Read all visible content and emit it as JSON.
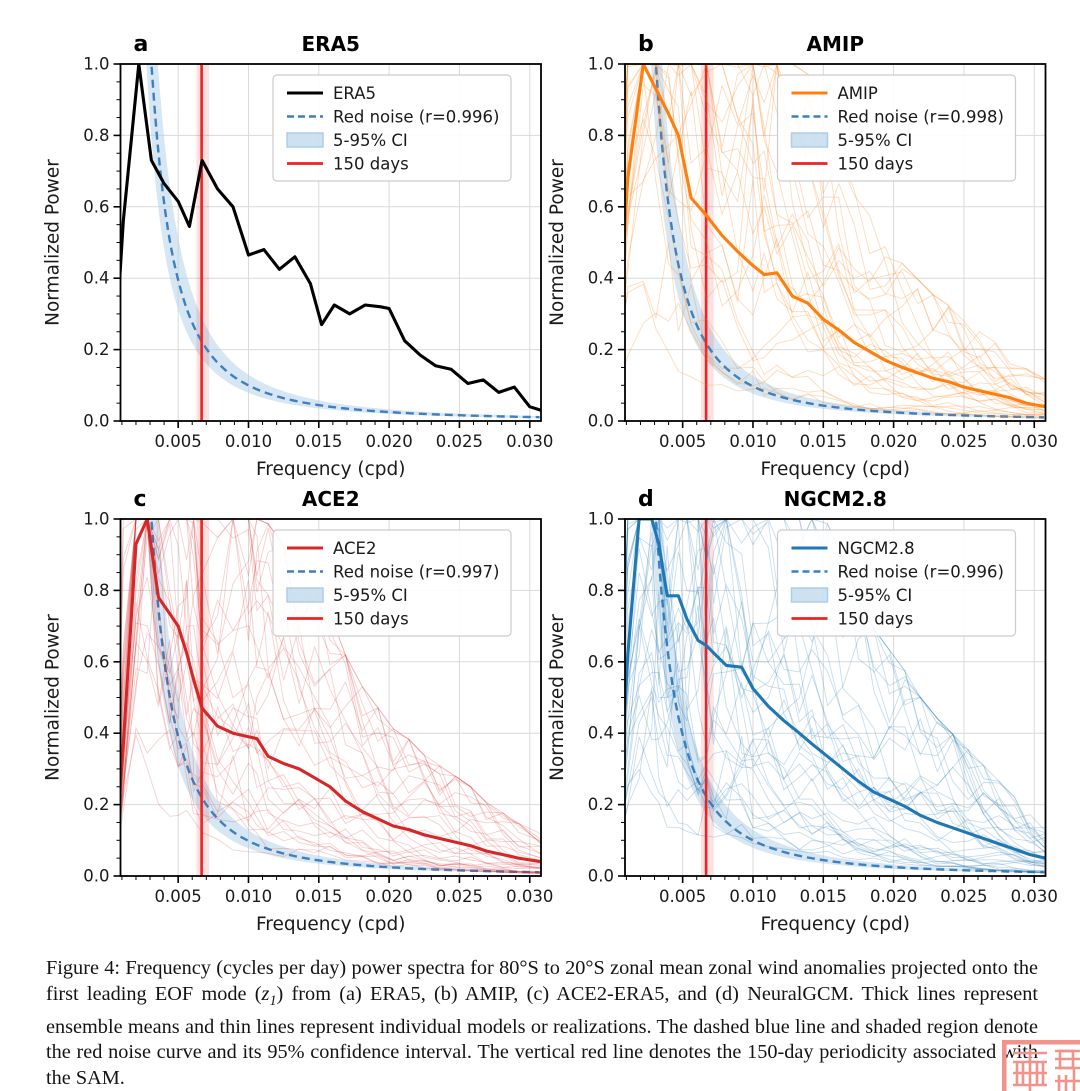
{
  "chart_data": {
    "type": "line",
    "figure_label": "Figure 4",
    "xlabel": "Frequency (cpd)",
    "ylabel": "Normalized Power",
    "xlim": [
      0.0009,
      0.0308
    ],
    "ylim": [
      0.0,
      1.0
    ],
    "xticks": [
      0.005,
      0.01,
      0.015,
      0.02,
      0.025,
      0.03
    ],
    "xtick_labels": [
      "0.005",
      "0.010",
      "0.015",
      "0.020",
      "0.025",
      "0.030"
    ],
    "yticks": [
      0.0,
      0.2,
      0.4,
      0.6,
      0.8,
      1.0
    ],
    "ytick_labels": [
      "0.0",
      "0.2",
      "0.4",
      "0.6",
      "0.8",
      "1.0"
    ],
    "grid": true,
    "legend_position": "upper right",
    "line150_x": 0.006667,
    "line150_band": [
      0.0063,
      0.0072
    ],
    "ci_label": "5-95% CI",
    "line150_label": "150 days",
    "colors": {
      "era5": "#000000",
      "amip": "#ff7f0e",
      "ace2": "#d62728",
      "ngcm": "#1f77b4",
      "red_noise": "#3d7fbf",
      "ci_fill": "#aecde6",
      "line150": "#ee2222",
      "grid": "#d9d9d9"
    },
    "panels": [
      {
        "letter": "a",
        "title": "ERA5",
        "series_name": "ERA5",
        "color_key": "era5",
        "r": 0.996,
        "legend": [
          "ERA5",
          "Red noise (r=0.996)",
          "5-95% CI",
          "150 days"
        ],
        "n_members": 0,
        "member_alpha": 0,
        "seed": 11,
        "mean": [
          [
            0.0005,
            0.18
          ],
          [
            0.0011,
            0.56
          ],
          [
            0.0022,
            1.0
          ],
          [
            0.0031,
            0.73
          ],
          [
            0.004,
            0.665
          ],
          [
            0.005,
            0.615
          ],
          [
            0.0058,
            0.545
          ],
          [
            0.0067,
            0.73
          ],
          [
            0.0078,
            0.65
          ],
          [
            0.0089,
            0.6
          ],
          [
            0.01,
            0.465
          ],
          [
            0.0111,
            0.48
          ],
          [
            0.0122,
            0.425
          ],
          [
            0.0133,
            0.46
          ],
          [
            0.0144,
            0.385
          ],
          [
            0.0152,
            0.27
          ],
          [
            0.0161,
            0.325
          ],
          [
            0.0172,
            0.3
          ],
          [
            0.0183,
            0.325
          ],
          [
            0.0194,
            0.32
          ],
          [
            0.02,
            0.315
          ],
          [
            0.0211,
            0.225
          ],
          [
            0.0222,
            0.185
          ],
          [
            0.0233,
            0.155
          ],
          [
            0.0244,
            0.145
          ],
          [
            0.0256,
            0.105
          ],
          [
            0.0267,
            0.115
          ],
          [
            0.0278,
            0.08
          ],
          [
            0.0289,
            0.095
          ],
          [
            0.03,
            0.04
          ],
          [
            0.0308,
            0.03
          ]
        ]
      },
      {
        "letter": "b",
        "title": "AMIP",
        "series_name": "AMIP",
        "color_key": "amip",
        "r": 0.998,
        "legend": [
          "AMIP",
          "Red noise (r=0.998)",
          "5-95% CI",
          "150 days"
        ],
        "n_members": 28,
        "member_alpha": 0.28,
        "seed": 23,
        "mean": [
          [
            0.0005,
            0.3
          ],
          [
            0.0011,
            0.68
          ],
          [
            0.0022,
            1.0
          ],
          [
            0.0031,
            0.93
          ],
          [
            0.004,
            0.86
          ],
          [
            0.0047,
            0.8
          ],
          [
            0.0056,
            0.625
          ],
          [
            0.0067,
            0.575
          ],
          [
            0.0078,
            0.52
          ],
          [
            0.0089,
            0.475
          ],
          [
            0.01,
            0.435
          ],
          [
            0.0108,
            0.41
          ],
          [
            0.0117,
            0.415
          ],
          [
            0.0128,
            0.35
          ],
          [
            0.0139,
            0.33
          ],
          [
            0.015,
            0.285
          ],
          [
            0.0161,
            0.255
          ],
          [
            0.0172,
            0.22
          ],
          [
            0.0183,
            0.195
          ],
          [
            0.0194,
            0.17
          ],
          [
            0.0206,
            0.15
          ],
          [
            0.0217,
            0.135
          ],
          [
            0.0228,
            0.12
          ],
          [
            0.0239,
            0.11
          ],
          [
            0.025,
            0.095
          ],
          [
            0.0261,
            0.085
          ],
          [
            0.0272,
            0.075
          ],
          [
            0.0283,
            0.065
          ],
          [
            0.0294,
            0.05
          ],
          [
            0.0308,
            0.04
          ]
        ]
      },
      {
        "letter": "c",
        "title": "ACE2",
        "series_name": "ACE2",
        "color_key": "ace2",
        "r": 0.997,
        "legend": [
          "ACE2",
          "Red noise (r=0.997)",
          "5-95% CI",
          "150 days"
        ],
        "n_members": 32,
        "member_alpha": 0.22,
        "seed": 37,
        "mean": [
          [
            0.0005,
            0.03
          ],
          [
            0.0011,
            0.37
          ],
          [
            0.002,
            0.93
          ],
          [
            0.0028,
            1.0
          ],
          [
            0.0036,
            0.78
          ],
          [
            0.0044,
            0.735
          ],
          [
            0.005,
            0.7
          ],
          [
            0.0056,
            0.625
          ],
          [
            0.0061,
            0.55
          ],
          [
            0.0067,
            0.47
          ],
          [
            0.0078,
            0.42
          ],
          [
            0.0089,
            0.4
          ],
          [
            0.01,
            0.39
          ],
          [
            0.0106,
            0.385
          ],
          [
            0.0114,
            0.335
          ],
          [
            0.0125,
            0.315
          ],
          [
            0.0136,
            0.3
          ],
          [
            0.0147,
            0.275
          ],
          [
            0.0158,
            0.25
          ],
          [
            0.0169,
            0.21
          ],
          [
            0.0181,
            0.18
          ],
          [
            0.0192,
            0.16
          ],
          [
            0.0203,
            0.14
          ],
          [
            0.0214,
            0.13
          ],
          [
            0.0225,
            0.115
          ],
          [
            0.0236,
            0.105
          ],
          [
            0.0247,
            0.095
          ],
          [
            0.0258,
            0.085
          ],
          [
            0.0269,
            0.07
          ],
          [
            0.0281,
            0.06
          ],
          [
            0.0292,
            0.05
          ],
          [
            0.0308,
            0.04
          ]
        ]
      },
      {
        "letter": "d",
        "title": "NGCM2.8",
        "series_name": "NGCM2.8",
        "color_key": "ngcm",
        "r": 0.996,
        "legend": [
          "NGCM2.8",
          "Red noise (r=0.996)",
          "5-95% CI",
          "150 days"
        ],
        "n_members": 36,
        "member_alpha": 0.25,
        "seed": 53,
        "mean": [
          [
            0.0005,
            0.22
          ],
          [
            0.0011,
            0.62
          ],
          [
            0.0019,
            1.0
          ],
          [
            0.0028,
            1.0
          ],
          [
            0.0033,
            0.93
          ],
          [
            0.0039,
            0.785
          ],
          [
            0.0047,
            0.785
          ],
          [
            0.0053,
            0.72
          ],
          [
            0.0061,
            0.66
          ],
          [
            0.0067,
            0.645
          ],
          [
            0.0072,
            0.625
          ],
          [
            0.0081,
            0.59
          ],
          [
            0.0092,
            0.585
          ],
          [
            0.01,
            0.525
          ],
          [
            0.0111,
            0.475
          ],
          [
            0.0122,
            0.435
          ],
          [
            0.0133,
            0.4
          ],
          [
            0.0142,
            0.37
          ],
          [
            0.0153,
            0.335
          ],
          [
            0.0164,
            0.3
          ],
          [
            0.0175,
            0.265
          ],
          [
            0.0186,
            0.235
          ],
          [
            0.0197,
            0.215
          ],
          [
            0.0208,
            0.195
          ],
          [
            0.0219,
            0.17
          ],
          [
            0.0231,
            0.15
          ],
          [
            0.0242,
            0.135
          ],
          [
            0.0253,
            0.12
          ],
          [
            0.0264,
            0.105
          ],
          [
            0.0275,
            0.09
          ],
          [
            0.0286,
            0.075
          ],
          [
            0.0297,
            0.06
          ],
          [
            0.0308,
            0.05
          ]
        ]
      }
    ]
  },
  "caption": {
    "seg1": "Figure 4:  Frequency (cycles per day) power spectra for 80°S to 20°S zonal mean zonal wind anomalies projected onto the first leading EOF mode (",
    "z_base": "z",
    "z_sub": "1",
    "seg2": ") from (a) ERA5, (b) AMIP, (c) ACE2-ERA5, and (d) NeuralGCM. Thick lines represent ensemble means and thin lines represent individual models or realizations. The dashed blue line and shaded region denote the red noise curve and its 95% confidence interval. The vertical red line denotes the 150-day periodicity associated with the SAM."
  },
  "watermark": {
    "kind": "red-seal-stamp",
    "color": "#f0938a"
  }
}
